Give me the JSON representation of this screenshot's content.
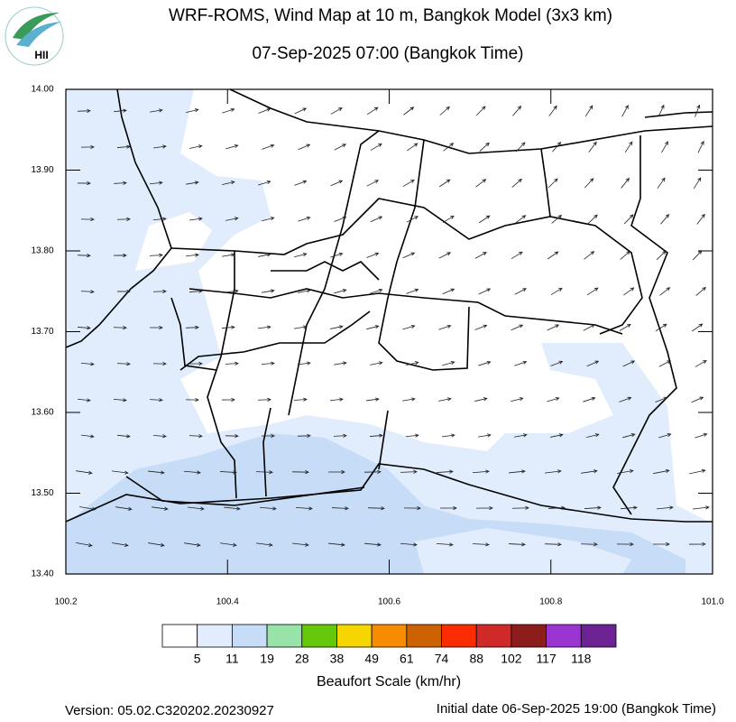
{
  "header": {
    "title": "WRF-ROMS, Wind Map at 10 m, Bangkok Model (3x3 km)",
    "subtitle": "07-Sep-2025 07:00 (Bangkok Time)",
    "logo": "HII"
  },
  "map": {
    "xlim": [
      100.2,
      101.0
    ],
    "ylim": [
      13.4,
      14.0
    ],
    "xticks": [
      100.2,
      100.4,
      100.6,
      100.8,
      {
        "value": 101,
        "label": "101.0"
      }
    ],
    "yticks": [
      {
        "value": 13.4,
        "label": "13.40"
      },
      {
        "value": 13.5,
        "label": "13.50"
      },
      {
        "value": 13.6,
        "label": "13.60"
      },
      {
        "value": 13.7,
        "label": "13.70"
      },
      {
        "value": 13.8,
        "label": "13.80"
      },
      {
        "value": 13.9,
        "label": "13.90"
      },
      {
        "value": 14,
        "label": "14.00"
      }
    ]
  },
  "colorbar": {
    "label": "Beaufort Scale (km/hr)",
    "colors": [
      "#ffffff",
      "#e1edfc",
      "#c6dcf7",
      "#98e4a8",
      "#66c80a",
      "#f7d500",
      "#f98b00",
      "#cc6202",
      "#fb2c00",
      "#d02a28",
      "#8d1c1c",
      "#9b35d2",
      "#6d2293"
    ],
    "levels": [
      5,
      11,
      19,
      28,
      38,
      49,
      61,
      74,
      88,
      102,
      117,
      118
    ]
  },
  "footer": {
    "version": "Version: 05.02.C320202.20230927",
    "initial": "Initial date 06-Sep-2025 19:00 (Bangkok Time)"
  }
}
